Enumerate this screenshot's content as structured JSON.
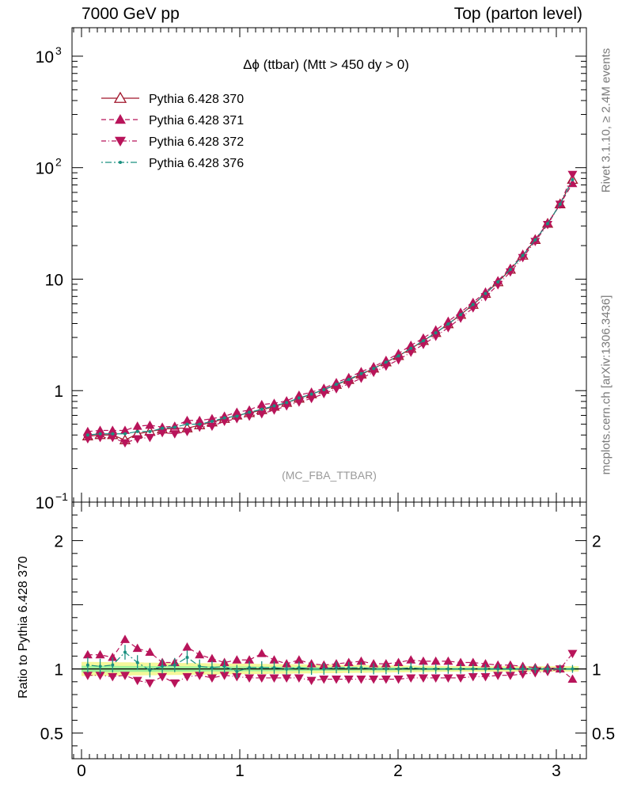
{
  "header": {
    "left": "7000 GeV pp",
    "right": "Top (parton level)"
  },
  "side": {
    "rivet": "Rivet 3.1.10, ≥ 2.4M events",
    "mcplots": "mcplots.cern.ch [arXiv:1306.3436]"
  },
  "chart_data": {
    "type": "line",
    "title": "Δϕ (ttbar) (Mtt > 450 dy > 0)",
    "watermark": "(MC_FBA_TTBAR)",
    "ratio_ylabel": "Ratio to Pythia 6.428 370",
    "main": {
      "yscale": "log",
      "ylim": [
        0.1,
        1800
      ],
      "yticks": [
        {
          "v": 0.1,
          "base": "10",
          "exp": "−1"
        },
        {
          "v": 1,
          "base": "1",
          "exp": ""
        },
        {
          "v": 10,
          "base": "10",
          "exp": ""
        },
        {
          "v": 100,
          "base": "10",
          "exp": "2"
        },
        {
          "v": 1000,
          "base": "10",
          "exp": "3"
        }
      ]
    },
    "ratio": {
      "ylim": [
        0.3,
        2.3
      ],
      "yticks": [
        {
          "v": 0.5,
          "label": "0.5"
        },
        {
          "v": 1,
          "label": "1"
        },
        {
          "v": 2,
          "label": "2"
        }
      ]
    },
    "xlim": [
      -0.06,
      3.19
    ],
    "xticks": [
      {
        "v": 0,
        "label": "0"
      },
      {
        "v": 1,
        "label": "1"
      },
      {
        "v": 2,
        "label": "2"
      },
      {
        "v": 3,
        "label": "3"
      }
    ],
    "x": [
      0.0393,
      0.1178,
      0.1963,
      0.2749,
      0.3534,
      0.432,
      0.5105,
      0.589,
      0.6676,
      0.7461,
      0.8247,
      0.9032,
      0.9817,
      1.0603,
      1.1388,
      1.2174,
      1.2959,
      1.3744,
      1.453,
      1.5315,
      1.6101,
      1.6886,
      1.7671,
      1.8457,
      1.9242,
      2.0028,
      2.0813,
      2.1598,
      2.2384,
      2.3169,
      2.3955,
      2.474,
      2.5525,
      2.6311,
      2.7096,
      2.7882,
      2.8667,
      2.9452,
      3.0238,
      3.1023
    ],
    "legend_position": "top-left",
    "series": [
      {
        "name": "Pythia 6.428 370",
        "color": "#a0142a",
        "marker": "triangle-up-open",
        "dash": "",
        "values": [
          0.39,
          0.4,
          0.4,
          0.36,
          0.41,
          0.43,
          0.45,
          0.46,
          0.46,
          0.49,
          0.52,
          0.56,
          0.6,
          0.63,
          0.67,
          0.72,
          0.78,
          0.85,
          0.93,
          1.02,
          1.13,
          1.25,
          1.4,
          1.58,
          1.8,
          2.05,
          2.38,
          2.8,
          3.3,
          3.95,
          4.8,
          5.9,
          7.4,
          9.4,
          12.2,
          16.3,
          22.5,
          31.5,
          47.0,
          78.0
        ],
        "ratio": [
          1,
          1,
          1,
          1,
          1,
          1,
          1,
          1,
          1,
          1,
          1,
          1,
          1,
          1,
          1,
          1,
          1,
          1,
          1,
          1,
          1,
          1,
          1,
          1,
          1,
          1,
          1,
          1,
          1,
          1,
          1,
          1,
          1,
          1,
          1,
          1,
          1,
          1,
          1,
          1
        ]
      },
      {
        "name": "Pythia 6.428 371",
        "color": "#b8145a",
        "marker": "triangle-up",
        "dash": "6,4",
        "values": [
          0.43,
          0.44,
          0.44,
          0.44,
          0.48,
          0.49,
          0.47,
          0.48,
          0.54,
          0.54,
          0.56,
          0.59,
          0.64,
          0.67,
          0.75,
          0.77,
          0.81,
          0.91,
          0.97,
          1.05,
          1.18,
          1.31,
          1.48,
          1.64,
          1.87,
          2.15,
          2.55,
          2.96,
          3.5,
          4.19,
          5.04,
          6.18,
          7.66,
          9.67,
          12.5,
          16.7,
          22.8,
          31.8,
          47.0,
          72.0
        ],
        "ratio": [
          1.11,
          1.11,
          1.09,
          1.23,
          1.16,
          1.13,
          1.05,
          1.05,
          1.17,
          1.11,
          1.08,
          1.05,
          1.07,
          1.07,
          1.12,
          1.07,
          1.04,
          1.07,
          1.04,
          1.03,
          1.04,
          1.05,
          1.06,
          1.04,
          1.04,
          1.05,
          1.07,
          1.06,
          1.06,
          1.06,
          1.05,
          1.05,
          1.04,
          1.03,
          1.03,
          1.02,
          1.01,
          1.01,
          1.0,
          0.92
        ]
      },
      {
        "name": "Pythia 6.428 372",
        "color": "#b8145a",
        "marker": "triangle-down",
        "dash": "6,3,1,3",
        "values": [
          0.37,
          0.38,
          0.38,
          0.34,
          0.37,
          0.38,
          0.42,
          0.41,
          0.43,
          0.47,
          0.48,
          0.53,
          0.56,
          0.59,
          0.62,
          0.67,
          0.73,
          0.79,
          0.85,
          0.94,
          1.04,
          1.15,
          1.29,
          1.46,
          1.66,
          1.89,
          2.21,
          2.6,
          3.07,
          3.67,
          4.47,
          5.52,
          6.96,
          8.89,
          11.6,
          15.6,
          21.8,
          30.9,
          47.0,
          87.0
        ],
        "ratio": [
          0.95,
          0.95,
          0.94,
          0.95,
          0.91,
          0.89,
          0.94,
          0.89,
          0.94,
          0.95,
          0.93,
          0.95,
          0.94,
          0.93,
          0.93,
          0.93,
          0.93,
          0.93,
          0.91,
          0.92,
          0.92,
          0.92,
          0.92,
          0.92,
          0.92,
          0.92,
          0.93,
          0.93,
          0.93,
          0.93,
          0.93,
          0.94,
          0.94,
          0.95,
          0.95,
          0.96,
          0.97,
          0.98,
          1.0,
          1.12
        ]
      },
      {
        "name": "Pythia 6.428 376",
        "color": "#1a9080",
        "marker": "dot",
        "dash": "2,3,8,3",
        "values": [
          0.4,
          0.41,
          0.41,
          0.41,
          0.43,
          0.43,
          0.46,
          0.47,
          0.5,
          0.5,
          0.53,
          0.57,
          0.59,
          0.64,
          0.68,
          0.73,
          0.78,
          0.86,
          0.93,
          1.02,
          1.14,
          1.26,
          1.42,
          1.58,
          1.8,
          2.05,
          2.4,
          2.8,
          3.3,
          3.96,
          4.81,
          5.92,
          7.43,
          9.43,
          12.2,
          16.3,
          22.5,
          31.5,
          47.0,
          78.0
        ],
        "ratio": [
          1.03,
          1.02,
          1.03,
          1.13,
          1.05,
          0.99,
          1.02,
          1.03,
          1.09,
          1.02,
          1.01,
          1.02,
          0.98,
          1.01,
          1.01,
          1.01,
          1.0,
          1.01,
          1.0,
          1.0,
          1.01,
          1.01,
          1.01,
          1.0,
          1.0,
          1.0,
          1.01,
          1.0,
          1.0,
          1.0,
          1.0,
          1.0,
          1.0,
          1.0,
          1.0,
          1.0,
          1.0,
          1.0,
          1.0,
          1.0
        ]
      }
    ]
  }
}
